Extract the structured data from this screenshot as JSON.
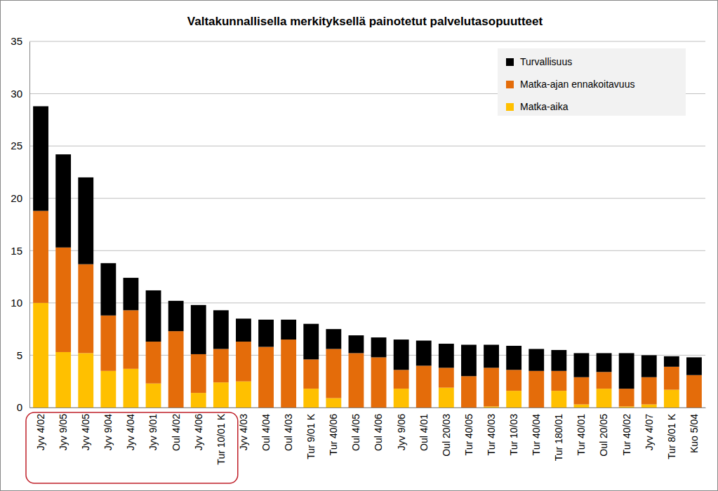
{
  "chart_data": {
    "type": "bar",
    "stacked": true,
    "title": "Valtakunnallisella merkityksellä painotetut palvelutasopuutteet",
    "categories": [
      "Jyv 4/02",
      "Jyv 9/05",
      "Jyv 4/05",
      "Jyv 9/04",
      "Jyv 4/04",
      "Jyv 9/01",
      "Oul 4/02",
      "Jyv 4/06",
      "Tur 10/01 K",
      "Jyv 4/03",
      "Oul 4/04",
      "Oul 4/03",
      "Tur 9/01 K",
      "Tur 40/06",
      "Oul 4/05",
      "Oul 4/06",
      "Jyv 9/06",
      "Oul 4/01",
      "Oul 20/03",
      "Tur 40/05",
      "Tur 40/03",
      "Tur 10/03",
      "Tur 40/04",
      "Tur 180/01",
      "Tur 40/01",
      "Oul 20/05",
      "Tur 40/02",
      "Jyv 4/07",
      "Tur 8/01 K",
      "Kuo 5/04"
    ],
    "series": [
      {
        "name": "Matka-aika",
        "color": "#ffc000",
        "values": [
          10.0,
          5.3,
          5.2,
          3.5,
          3.7,
          2.3,
          0,
          1.4,
          2.4,
          2.5,
          0,
          0,
          1.8,
          0.9,
          0,
          0,
          1.8,
          0,
          1.9,
          0,
          0.1,
          1.6,
          0,
          1.6,
          0.3,
          1.8,
          0.1,
          0.3,
          1.7,
          0
        ]
      },
      {
        "name": "Matka-ajan ennakoitavuus",
        "color": "#e46c0a",
        "values": [
          8.8,
          10.0,
          8.5,
          5.3,
          5.6,
          4.0,
          7.3,
          3.7,
          3.2,
          3.8,
          5.8,
          6.5,
          2.8,
          4.7,
          5.2,
          4.8,
          1.8,
          4.0,
          1.9,
          3.0,
          3.7,
          2.0,
          3.5,
          1.9,
          2.6,
          1.6,
          1.7,
          2.6,
          2.2,
          3.1
        ]
      },
      {
        "name": "Turvallisuus",
        "color": "#000000",
        "values": [
          10.0,
          8.9,
          8.3,
          5.0,
          3.1,
          4.9,
          2.9,
          4.7,
          3.7,
          2.2,
          2.6,
          1.9,
          3.4,
          1.9,
          1.7,
          1.9,
          2.9,
          2.4,
          2.3,
          3.0,
          2.2,
          2.3,
          2.1,
          2.0,
          2.3,
          1.8,
          3.4,
          2.1,
          1.0,
          1.7
        ]
      }
    ],
    "ylim": [
      0,
      35
    ],
    "yticks": [
      0,
      5,
      10,
      15,
      20,
      25,
      30,
      35
    ],
    "grid": true,
    "legend": "top-right"
  }
}
